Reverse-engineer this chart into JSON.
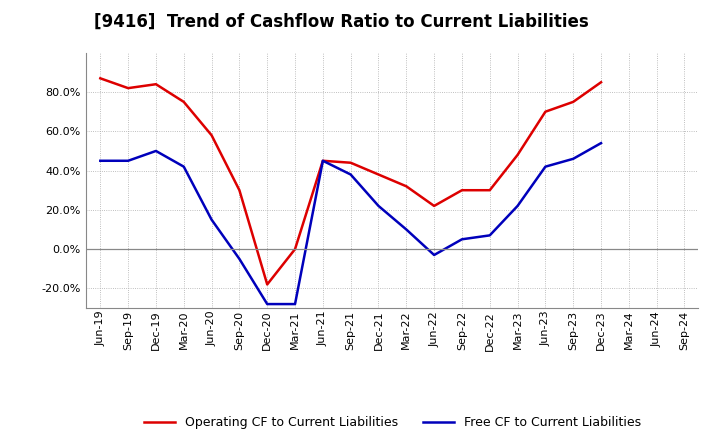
{
  "title": "[9416]  Trend of Cashflow Ratio to Current Liabilities",
  "x_labels": [
    "Jun-19",
    "Sep-19",
    "Dec-19",
    "Mar-20",
    "Jun-20",
    "Sep-20",
    "Dec-20",
    "Mar-21",
    "Jun-21",
    "Sep-21",
    "Dec-21",
    "Mar-22",
    "Jun-22",
    "Sep-22",
    "Dec-22",
    "Mar-23",
    "Jun-23",
    "Sep-23",
    "Dec-23",
    "Mar-24",
    "Jun-24",
    "Sep-24"
  ],
  "operating_cf": [
    0.87,
    0.82,
    0.84,
    0.75,
    0.58,
    0.3,
    -0.18,
    0.0,
    0.45,
    0.44,
    0.38,
    0.32,
    0.22,
    0.3,
    0.3,
    0.48,
    0.7,
    0.75,
    0.85,
    null,
    null,
    null
  ],
  "free_cf": [
    0.45,
    0.45,
    0.5,
    0.42,
    0.15,
    -0.05,
    -0.28,
    -0.28,
    0.45,
    0.38,
    0.22,
    0.1,
    -0.03,
    0.05,
    0.07,
    0.22,
    0.42,
    0.46,
    0.54,
    null,
    null,
    null
  ],
  "operating_cf_color": "#dd0000",
  "free_cf_color": "#0000bb",
  "background_color": "#ffffff",
  "grid_color": "#aaaaaa",
  "ylim": [
    -0.3,
    1.0
  ],
  "yticks": [
    -0.2,
    0.0,
    0.2,
    0.4,
    0.6,
    0.8
  ],
  "legend_labels": [
    "Operating CF to Current Liabilities",
    "Free CF to Current Liabilities"
  ],
  "title_fontsize": 12,
  "tick_fontsize": 8
}
